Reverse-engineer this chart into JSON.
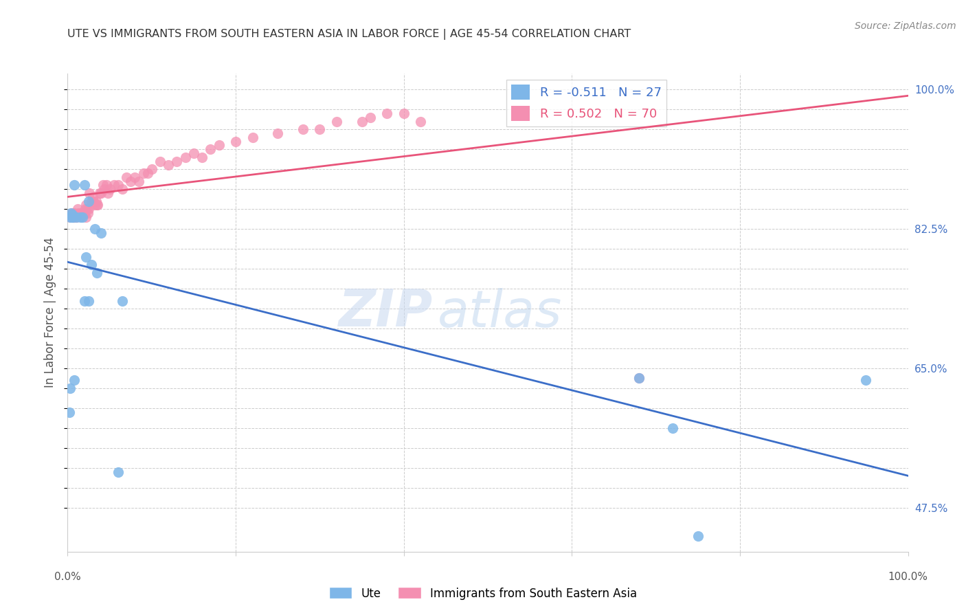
{
  "title": "UTE VS IMMIGRANTS FROM SOUTH EASTERN ASIA IN LABOR FORCE | AGE 45-54 CORRELATION CHART",
  "source": "Source: ZipAtlas.com",
  "ylabel": "In Labor Force | Age 45-54",
  "xlim": [
    0.0,
    1.0
  ],
  "ylim": [
    0.42,
    1.02
  ],
  "R_blue": -0.511,
  "N_blue": 27,
  "R_pink": 0.502,
  "N_pink": 70,
  "blue_color": "#7EB6E8",
  "pink_color": "#F48FB1",
  "blue_line_color": "#3B6EC8",
  "pink_line_color": "#E8547A",
  "watermark_zip": "ZIP",
  "watermark_atlas": "atlas",
  "ytick_vals": [
    0.475,
    0.5,
    0.525,
    0.55,
    0.575,
    0.6,
    0.625,
    0.65,
    0.675,
    0.7,
    0.725,
    0.75,
    0.775,
    0.8,
    0.825,
    0.85,
    0.875,
    0.9,
    0.925,
    0.95,
    0.975,
    1.0
  ],
  "ytick_labels": [
    "47.5%",
    "",
    "",
    "",
    "",
    "",
    "",
    "65.0%",
    "",
    "",
    "",
    "",
    "",
    "",
    "82.5%",
    "",
    "",
    "",
    "",
    "",
    "",
    "100.0%"
  ],
  "blue_scatter_x": [
    0.008,
    0.02,
    0.025,
    0.005,
    0.003,
    0.004,
    0.006,
    0.005,
    0.01,
    0.018,
    0.022,
    0.035,
    0.04,
    0.065,
    0.02,
    0.025,
    0.028,
    0.032,
    0.015,
    0.008,
    0.003,
    0.002,
    0.06,
    0.68,
    0.72,
    0.95,
    0.75
  ],
  "blue_scatter_y": [
    0.88,
    0.88,
    0.86,
    0.84,
    0.84,
    0.845,
    0.84,
    0.843,
    0.84,
    0.84,
    0.79,
    0.77,
    0.82,
    0.735,
    0.735,
    0.735,
    0.78,
    0.825,
    0.84,
    0.635,
    0.625,
    0.595,
    0.52,
    0.638,
    0.575,
    0.635,
    0.44
  ],
  "pink_scatter_x": [
    0.003,
    0.004,
    0.005,
    0.006,
    0.007,
    0.008,
    0.008,
    0.009,
    0.01,
    0.012,
    0.013,
    0.014,
    0.015,
    0.016,
    0.016,
    0.017,
    0.018,
    0.019,
    0.02,
    0.021,
    0.022,
    0.022,
    0.023,
    0.024,
    0.025,
    0.026,
    0.028,
    0.03,
    0.031,
    0.032,
    0.034,
    0.035,
    0.036,
    0.038,
    0.04,
    0.042,
    0.044,
    0.046,
    0.048,
    0.05,
    0.055,
    0.06,
    0.065,
    0.07,
    0.075,
    0.08,
    0.085,
    0.09,
    0.095,
    0.1,
    0.11,
    0.12,
    0.13,
    0.14,
    0.15,
    0.16,
    0.17,
    0.18,
    0.2,
    0.22,
    0.25,
    0.28,
    0.3,
    0.32,
    0.35,
    0.36,
    0.38,
    0.4,
    0.42,
    0.68
  ],
  "pink_scatter_y": [
    0.84,
    0.843,
    0.845,
    0.842,
    0.84,
    0.84,
    0.845,
    0.843,
    0.84,
    0.85,
    0.845,
    0.843,
    0.844,
    0.843,
    0.845,
    0.843,
    0.844,
    0.843,
    0.845,
    0.85,
    0.855,
    0.84,
    0.85,
    0.845,
    0.85,
    0.87,
    0.86,
    0.865,
    0.86,
    0.855,
    0.86,
    0.855,
    0.855,
    0.87,
    0.87,
    0.88,
    0.875,
    0.88,
    0.87,
    0.875,
    0.88,
    0.88,
    0.875,
    0.89,
    0.885,
    0.89,
    0.885,
    0.895,
    0.895,
    0.9,
    0.91,
    0.905,
    0.91,
    0.915,
    0.92,
    0.915,
    0.925,
    0.93,
    0.935,
    0.94,
    0.945,
    0.95,
    0.95,
    0.96,
    0.96,
    0.965,
    0.97,
    0.97,
    0.96,
    0.638
  ],
  "legend_blue_label": "Ute",
  "legend_pink_label": "Immigrants from South Eastern Asia"
}
